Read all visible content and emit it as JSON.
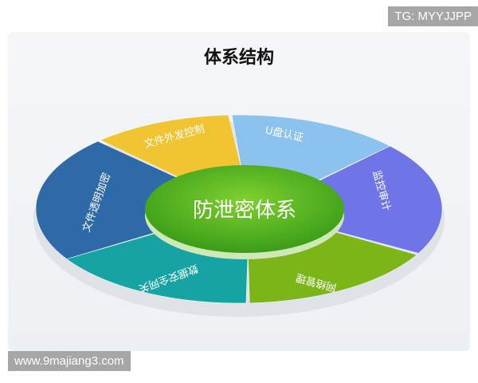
{
  "title": "体系结构",
  "center": {
    "label": "防泄密体系",
    "color": "#4fb81e"
  },
  "segments": [
    {
      "label": "U盘认证",
      "color": "#8cc3ee"
    },
    {
      "label": "监控审计",
      "color": "#6f75e6"
    },
    {
      "label": "网络管理",
      "color": "#7cb518"
    },
    {
      "label": "数据安全网关",
      "color": "#16a3a3"
    },
    {
      "label": "文件透明加密",
      "color": "#2f6aa8"
    },
    {
      "label": "文件外发控制",
      "color": "#f0c531"
    }
  ],
  "watermarks": {
    "top_right": "TG: MYYJJPP",
    "bottom_left": "www.9majiang3.com"
  }
}
